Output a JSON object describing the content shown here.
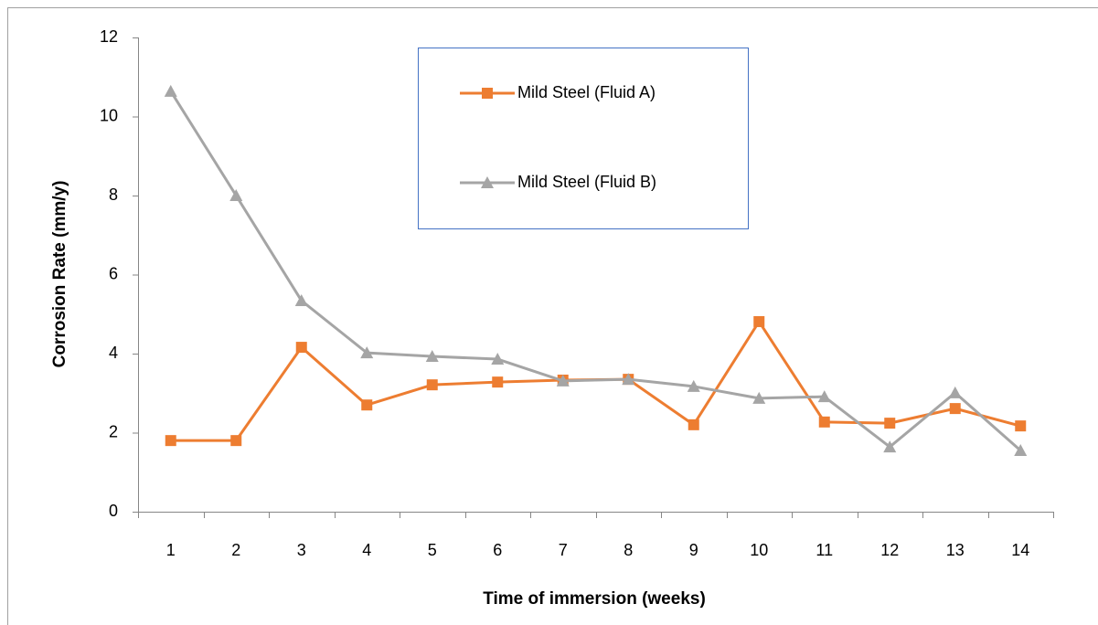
{
  "chart_data": {
    "type": "line",
    "x_label": "Time of immersion (weeks)",
    "y_label": "Corrosion Rate (mm/y)",
    "categories": [
      "1",
      "2",
      "3",
      "4",
      "5",
      "6",
      "7",
      "8",
      "9",
      "10",
      "11",
      "12",
      "13",
      "14"
    ],
    "series": [
      {
        "name": "Mild Steel (Fluid A)",
        "color": "#ED7D31",
        "marker": "square",
        "values": [
          1.8,
          1.8,
          4.16,
          2.7,
          3.21,
          3.28,
          3.33,
          3.35,
          2.2,
          4.81,
          2.27,
          2.24,
          2.61,
          2.17
        ]
      },
      {
        "name": "Mild Steel (Fluid B)",
        "color": "#A5A5A5",
        "marker": "triangle",
        "values": [
          10.64,
          8.0,
          5.34,
          4.02,
          3.93,
          3.86,
          3.31,
          3.35,
          3.17,
          2.87,
          2.91,
          1.64,
          3.01,
          1.55
        ]
      }
    ],
    "ylim": [
      0,
      12
    ],
    "yticks": [
      0,
      2,
      4,
      6,
      8,
      10,
      12
    ],
    "grid": false
  }
}
